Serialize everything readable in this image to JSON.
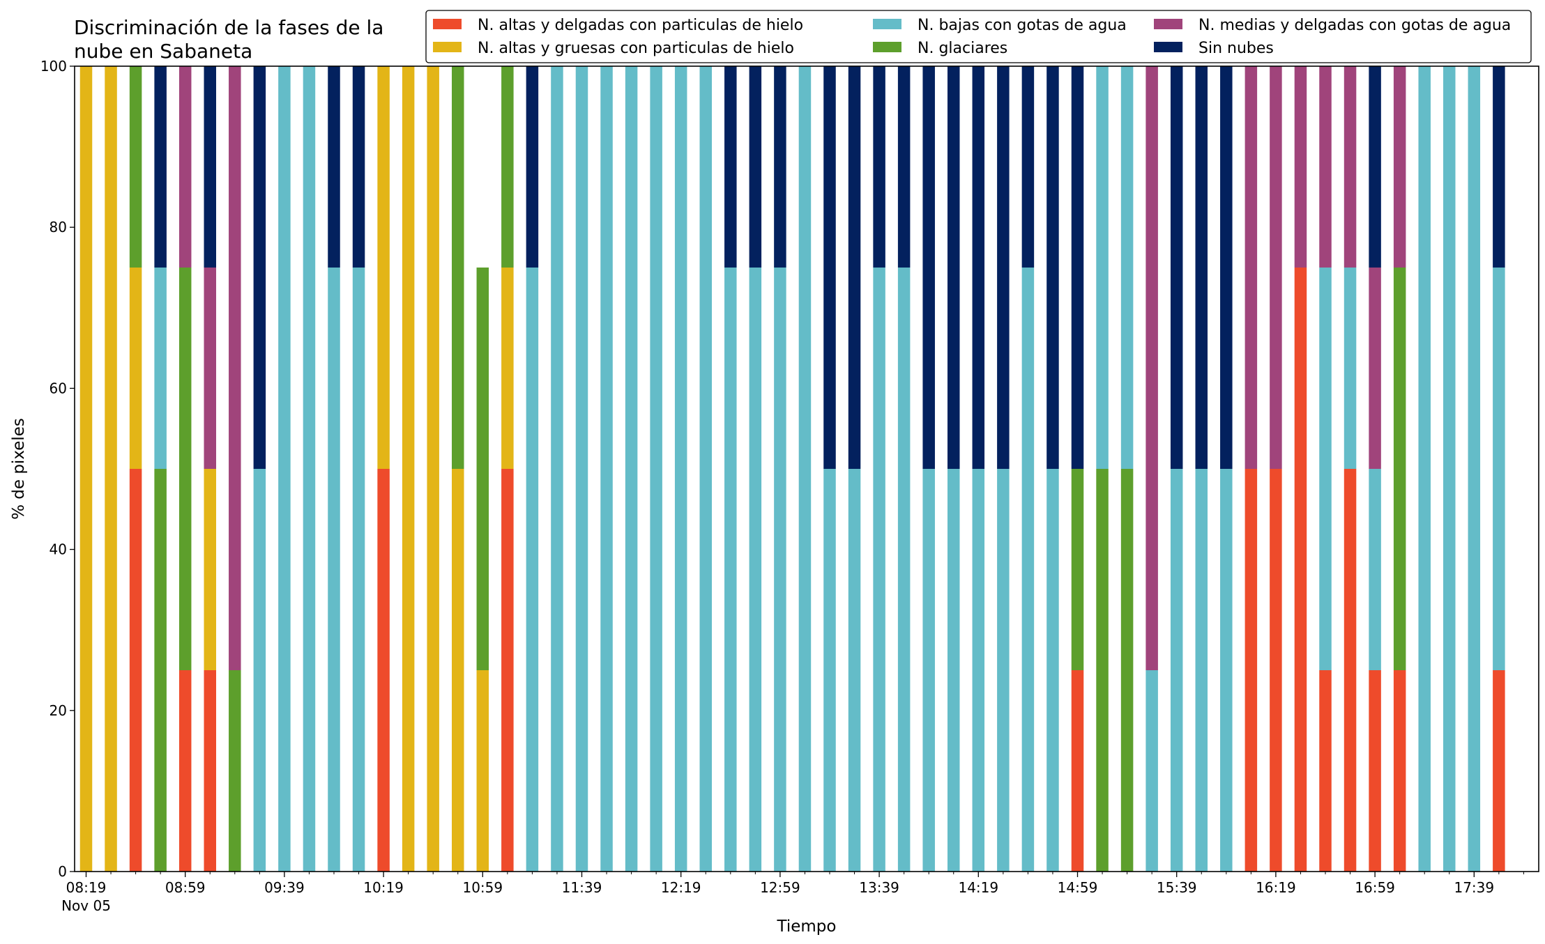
{
  "chart_data": {
    "type": "bar",
    "stacked": true,
    "title_line1": "Discriminación de la fases de la",
    "title_line2": "nube en Sabaneta",
    "xlabel": "Tiempo",
    "ylabel": "% de pixeles",
    "ylim": [
      0,
      100
    ],
    "yticks": [
      0,
      20,
      40,
      60,
      80,
      100
    ],
    "x_tick_labels": [
      "08:19",
      "08:59",
      "09:39",
      "10:19",
      "10:59",
      "11:39",
      "12:19",
      "12:59",
      "13:39",
      "14:19",
      "14:59",
      "15:39",
      "16:19",
      "16:59",
      "17:39"
    ],
    "x_date_label": "Nov 05",
    "legend_placement": "top-right",
    "legend_columns": 3,
    "series": [
      {
        "name": "N. altas y delgadas con particulas de hielo",
        "color": "#ee4b2b",
        "values": [
          0,
          0,
          50,
          0,
          25,
          25,
          0,
          0,
          0,
          0,
          0,
          0,
          50,
          0,
          0,
          0,
          0,
          50,
          0,
          0,
          0,
          0,
          0,
          0,
          0,
          0,
          0,
          0,
          0,
          0,
          0,
          0,
          0,
          0,
          0,
          0,
          0,
          0,
          0,
          0,
          25,
          0,
          0,
          0,
          0,
          0,
          0,
          50,
          50,
          75,
          25,
          50,
          25,
          25,
          0,
          0,
          0,
          25
        ]
      },
      {
        "name": "N. altas y gruesas con particulas de hielo",
        "color": "#e3b517",
        "values": [
          100,
          100,
          25,
          0,
          0,
          25,
          0,
          0,
          0,
          0,
          0,
          0,
          50,
          100,
          100,
          50,
          25,
          25,
          0,
          0,
          0,
          0,
          0,
          0,
          0,
          0,
          0,
          0,
          0,
          0,
          0,
          0,
          0,
          0,
          0,
          0,
          0,
          0,
          0,
          0,
          0,
          0,
          0,
          0,
          0,
          0,
          0,
          0,
          0,
          0,
          0,
          0,
          0,
          0,
          0,
          0,
          0,
          0
        ]
      },
      {
        "name": "N. glaciares",
        "color": "#5d9f2c",
        "values": [
          0,
          0,
          25,
          50,
          50,
          0,
          25,
          0,
          0,
          0,
          0,
          0,
          0,
          0,
          0,
          50,
          50,
          25,
          0,
          0,
          0,
          0,
          0,
          0,
          0,
          0,
          0,
          0,
          0,
          0,
          0,
          0,
          0,
          0,
          0,
          0,
          0,
          0,
          0,
          0,
          25,
          50,
          50,
          0,
          0,
          0,
          0,
          0,
          0,
          0,
          0,
          0,
          0,
          50,
          0,
          0,
          0,
          0
        ]
      },
      {
        "name": "N. bajas con gotas de agua",
        "color": "#64bcc8",
        "values": [
          0,
          0,
          0,
          25,
          0,
          0,
          0,
          50,
          100,
          100,
          75,
          75,
          0,
          0,
          0,
          0,
          0,
          0,
          75,
          100,
          100,
          100,
          100,
          100,
          100,
          100,
          75,
          75,
          75,
          100,
          50,
          50,
          75,
          75,
          50,
          50,
          50,
          50,
          75,
          50,
          0,
          50,
          50,
          25,
          50,
          50,
          50,
          0,
          0,
          0,
          50,
          25,
          25,
          0,
          100,
          100,
          100,
          50
        ]
      },
      {
        "name": "N. medias y delgadas con gotas de agua",
        "color": "#a0447b",
        "values": [
          0,
          0,
          0,
          0,
          25,
          25,
          75,
          0,
          0,
          0,
          0,
          0,
          0,
          0,
          0,
          0,
          0,
          0,
          0,
          0,
          0,
          0,
          0,
          0,
          0,
          0,
          0,
          0,
          0,
          0,
          0,
          0,
          0,
          0,
          0,
          0,
          0,
          0,
          0,
          0,
          0,
          0,
          0,
          75,
          0,
          0,
          0,
          50,
          50,
          25,
          25,
          25,
          25,
          25,
          0,
          0,
          0,
          0
        ]
      },
      {
        "name": "Sin nubes",
        "color": "#03215e",
        "values": [
          0,
          0,
          0,
          25,
          0,
          25,
          0,
          50,
          0,
          0,
          25,
          25,
          0,
          0,
          0,
          0,
          0,
          0,
          25,
          0,
          0,
          0,
          0,
          0,
          0,
          0,
          25,
          25,
          25,
          0,
          50,
          50,
          25,
          25,
          50,
          50,
          50,
          50,
          25,
          50,
          50,
          0,
          0,
          0,
          50,
          50,
          50,
          0,
          0,
          0,
          0,
          0,
          25,
          0,
          0,
          0,
          0,
          25
        ]
      }
    ]
  }
}
